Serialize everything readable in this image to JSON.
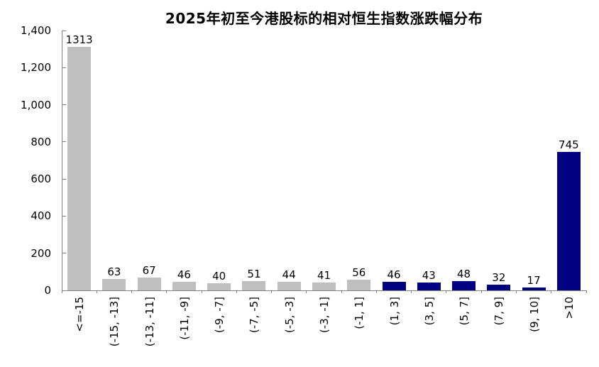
{
  "page": {
    "background": "#ffffff"
  },
  "chart_data": {
    "type": "bar",
    "title": "2025年初至今港股标的相对恒生指数涨跌幅分布",
    "categories": [
      "<=-15",
      "(-15, -13]",
      "(-13, -11]",
      "(-11, -9]",
      "(-9, -7]",
      "(-7, -5]",
      "(-5, -3]",
      "(-3, -1]",
      "(-1, 1]",
      "(1, 3]",
      "(3, 5]",
      "(5, 7]",
      "(7, 9]",
      "(9, 10]",
      ">10"
    ],
    "values": [
      1313,
      63,
      67,
      46,
      40,
      51,
      44,
      41,
      56,
      46,
      43,
      48,
      32,
      17,
      745
    ],
    "bar_colors": [
      "#bfbfbf",
      "#bfbfbf",
      "#bfbfbf",
      "#bfbfbf",
      "#bfbfbf",
      "#bfbfbf",
      "#bfbfbf",
      "#bfbfbf",
      "#bfbfbf",
      "#000080",
      "#000080",
      "#000080",
      "#000080",
      "#000080",
      "#000080"
    ],
    "palette": {
      "underperform_gray": "#bfbfbf",
      "outperform_navy": "#000080"
    },
    "xlabel": "",
    "ylabel": "",
    "ylim": [
      0,
      1400
    ],
    "ytick_step": 200,
    "ytick_labels": [
      "0",
      "200",
      "400",
      "600",
      "800",
      "1,000",
      "1,200",
      "1,400"
    ],
    "grid": false,
    "legend": null,
    "data_labels": true,
    "x_labels_rotation_deg": 90,
    "axis_color": "#808080",
    "text_color": "#000000"
  }
}
